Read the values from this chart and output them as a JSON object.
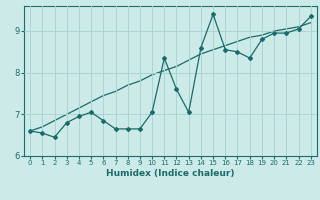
{
  "xlabel": "Humidex (Indice chaleur)",
  "ylabel": "",
  "background_color": "#cceae8",
  "grid_color": "#aad4d2",
  "line_color": "#1a6b6b",
  "x_data": [
    0,
    1,
    2,
    3,
    4,
    5,
    6,
    7,
    8,
    9,
    10,
    11,
    12,
    13,
    14,
    15,
    16,
    17,
    18,
    19,
    20,
    21,
    22,
    23
  ],
  "y_line1": [
    6.6,
    6.55,
    6.45,
    6.8,
    6.95,
    7.05,
    6.85,
    6.65,
    6.65,
    6.65,
    7.05,
    8.35,
    7.6,
    7.05,
    8.6,
    9.4,
    8.55,
    8.5,
    8.35,
    8.8,
    8.95,
    8.95,
    9.05,
    9.35
  ],
  "y_line2": [
    6.6,
    6.7,
    6.85,
    7.0,
    7.15,
    7.3,
    7.45,
    7.55,
    7.7,
    7.8,
    7.95,
    8.05,
    8.15,
    8.3,
    8.45,
    8.55,
    8.65,
    8.75,
    8.85,
    8.9,
    9.0,
    9.05,
    9.1,
    9.2
  ],
  "xlim": [
    -0.5,
    23.5
  ],
  "ylim": [
    6.0,
    9.6
  ],
  "yticks": [
    6,
    7,
    8,
    9
  ],
  "xticks": [
    0,
    1,
    2,
    3,
    4,
    5,
    6,
    7,
    8,
    9,
    10,
    11,
    12,
    13,
    14,
    15,
    16,
    17,
    18,
    19,
    20,
    21,
    22,
    23
  ]
}
